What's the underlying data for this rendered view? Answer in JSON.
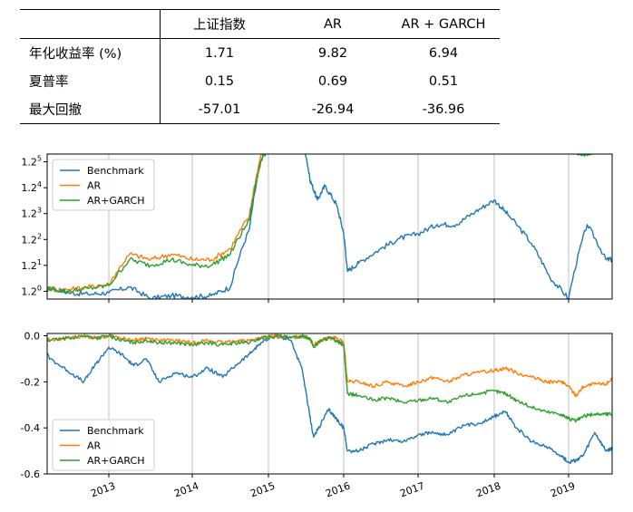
{
  "table": {
    "columns": [
      "",
      "上证指数",
      "AR",
      "AR + GARCH"
    ],
    "rows": [
      {
        "label": "年化收益率 (%)",
        "values": [
          "1.71",
          "9.82",
          "6.94"
        ]
      },
      {
        "label": "夏普率",
        "values": [
          "0.15",
          "0.69",
          "0.51"
        ]
      },
      {
        "label": "最大回撤",
        "values": [
          "-57.01",
          "-26.94",
          "-36.96"
        ]
      }
    ]
  },
  "colors": {
    "Benchmark": "#1f77b4",
    "AR": "#ff7f0e",
    "AR+GARCH": "#2ca02c"
  },
  "chart_data": [
    {
      "type": "line",
      "title": "",
      "xlabel": "",
      "ylabel": "",
      "x_ticks": [
        "2013",
        "2014",
        "2015",
        "2016",
        "2017",
        "2018",
        "2019"
      ],
      "y_scale": "log",
      "y_ticks": [
        "1.2⁰",
        "1.2¹",
        "1.2²",
        "1.2³",
        "1.2⁴",
        "1.2⁵"
      ],
      "ylim_exponent": [
        -0.3,
        5.3
      ],
      "xlim": [
        2012.0,
        2019.6
      ],
      "grid": "vertical",
      "legend": "upper-left",
      "x": [
        2012.0,
        2012.25,
        2012.5,
        2012.75,
        2013.0,
        2013.25,
        2013.5,
        2013.75,
        2014.0,
        2014.25,
        2014.5,
        2014.75,
        2014.9,
        2015.1,
        2015.3,
        2015.45,
        2015.55,
        2015.65,
        2015.75,
        2015.9,
        2016.0,
        2016.05,
        2016.2,
        2016.5,
        2016.75,
        2017.0,
        2017.25,
        2017.5,
        2017.75,
        2018.0,
        2018.2,
        2018.5,
        2018.75,
        2019.0,
        2019.25,
        2019.5,
        2019.6
      ],
      "series": [
        {
          "name": "Benchmark",
          "values": [
            1.0,
            1.04,
            0.99,
            0.98,
            0.99,
            1.03,
            0.95,
            0.97,
            0.96,
            0.97,
            1.03,
            1.55,
            2.5,
            3.0,
            3.3,
            3.0,
            2.2,
            1.9,
            2.1,
            1.85,
            1.5,
            1.15,
            1.22,
            1.35,
            1.45,
            1.5,
            1.6,
            1.6,
            1.75,
            1.9,
            1.7,
            1.4,
            1.1,
            0.95,
            1.6,
            1.25,
            1.25
          ]
        },
        {
          "name": "AR",
          "values": [
            1.0,
            1.02,
            1.01,
            1.03,
            1.05,
            1.3,
            1.25,
            1.3,
            1.25,
            1.25,
            1.35,
            1.7,
            2.6,
            3.3,
            4.2,
            5.0,
            4.7,
            4.8,
            4.5,
            4.6,
            4.6,
            4.05,
            3.95,
            3.9,
            3.95,
            3.85,
            3.95,
            4.0,
            4.1,
            4.2,
            4.2,
            4.05,
            3.85,
            3.8,
            3.95,
            3.95,
            4.05
          ]
        },
        {
          "name": "AR+GARCH",
          "values": [
            1.0,
            1.02,
            1.0,
            1.02,
            1.04,
            1.25,
            1.2,
            1.25,
            1.2,
            1.2,
            1.3,
            1.65,
            2.5,
            3.2,
            4.1,
            4.95,
            4.6,
            4.7,
            4.4,
            4.5,
            4.5,
            3.6,
            3.45,
            3.5,
            3.45,
            3.4,
            3.35,
            3.4,
            3.55,
            3.55,
            3.5,
            3.0,
            2.8,
            2.7,
            2.6,
            2.8,
            2.8
          ]
        }
      ]
    },
    {
      "type": "line",
      "title": "",
      "xlabel": "",
      "ylabel": "",
      "x_ticks": [
        "2013",
        "2014",
        "2015",
        "2016",
        "2017",
        "2018",
        "2019"
      ],
      "y_ticks": [
        "0.0",
        "-0.2",
        "-0.4",
        "-0.6"
      ],
      "ylim": [
        -0.6,
        0.01
      ],
      "xlim": [
        2012.0,
        2019.6
      ],
      "grid": "vertical",
      "legend": "lower-left",
      "x": [
        2012.0,
        2012.15,
        2012.3,
        2012.5,
        2012.7,
        2012.85,
        2013.0,
        2013.15,
        2013.3,
        2013.45,
        2013.6,
        2013.8,
        2014.0,
        2014.2,
        2014.4,
        2014.6,
        2014.75,
        2014.9,
        2015.1,
        2015.3,
        2015.45,
        2015.55,
        2015.6,
        2015.7,
        2015.8,
        2015.9,
        2016.0,
        2016.05,
        2016.2,
        2016.4,
        2016.6,
        2016.8,
        2017.0,
        2017.2,
        2017.4,
        2017.6,
        2017.8,
        2018.0,
        2018.15,
        2018.3,
        2018.5,
        2018.7,
        2018.9,
        2019.0,
        2019.1,
        2019.2,
        2019.35,
        2019.5,
        2019.6
      ],
      "series": [
        {
          "name": "Benchmark",
          "values": [
            0.0,
            -0.03,
            -0.1,
            -0.15,
            -0.2,
            -0.12,
            -0.05,
            -0.08,
            -0.13,
            -0.1,
            -0.2,
            -0.16,
            -0.18,
            -0.14,
            -0.18,
            -0.12,
            -0.08,
            -0.03,
            0.0,
            -0.02,
            -0.15,
            -0.35,
            -0.44,
            -0.38,
            -0.32,
            -0.36,
            -0.4,
            -0.5,
            -0.5,
            -0.47,
            -0.45,
            -0.46,
            -0.43,
            -0.42,
            -0.43,
            -0.39,
            -0.38,
            -0.35,
            -0.33,
            -0.4,
            -0.46,
            -0.48,
            -0.52,
            -0.55,
            -0.54,
            -0.52,
            -0.42,
            -0.5,
            -0.49
          ]
        },
        {
          "name": "AR",
          "values": [
            0.0,
            0.0,
            -0.02,
            -0.01,
            0.0,
            -0.01,
            0.0,
            -0.01,
            -0.02,
            -0.01,
            -0.02,
            -0.02,
            -0.03,
            -0.02,
            -0.03,
            -0.02,
            -0.02,
            -0.01,
            0.0,
            -0.01,
            0.0,
            -0.01,
            -0.04,
            -0.02,
            -0.01,
            -0.01,
            -0.03,
            -0.2,
            -0.2,
            -0.22,
            -0.2,
            -0.22,
            -0.2,
            -0.18,
            -0.2,
            -0.17,
            -0.16,
            -0.15,
            -0.14,
            -0.16,
            -0.18,
            -0.2,
            -0.2,
            -0.22,
            -0.26,
            -0.22,
            -0.21,
            -0.21,
            -0.18
          ]
        },
        {
          "name": "AR+GARCH",
          "values": [
            0.0,
            0.0,
            -0.02,
            -0.01,
            0.0,
            -0.01,
            0.0,
            -0.02,
            -0.03,
            -0.02,
            -0.03,
            -0.03,
            -0.04,
            -0.03,
            -0.04,
            -0.03,
            -0.03,
            -0.01,
            0.0,
            -0.01,
            0.0,
            -0.01,
            -0.05,
            -0.02,
            -0.01,
            -0.02,
            -0.04,
            -0.25,
            -0.26,
            -0.28,
            -0.27,
            -0.29,
            -0.28,
            -0.27,
            -0.29,
            -0.26,
            -0.25,
            -0.24,
            -0.25,
            -0.28,
            -0.31,
            -0.33,
            -0.34,
            -0.36,
            -0.37,
            -0.35,
            -0.34,
            -0.34,
            -0.34
          ]
        }
      ]
    }
  ]
}
